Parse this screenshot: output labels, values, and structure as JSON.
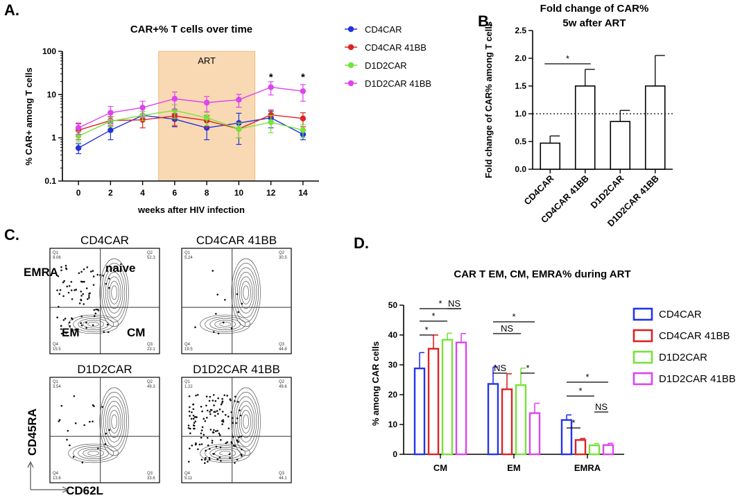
{
  "panels": {
    "a": "A.",
    "b": "B.",
    "c": "C.",
    "d": "D."
  },
  "chart_data": [
    {
      "type": "line",
      "title": "CAR+% T cells over time",
      "xlabel": "weeks after HIV infection",
      "ylabel": "% CAR+ among T cells",
      "yscale": "log",
      "ylim": [
        0.1,
        100
      ],
      "xlim": [
        -1,
        15
      ],
      "x": [
        0,
        2,
        4,
        6,
        8,
        10,
        12,
        14
      ],
      "x_ticks": [
        "0",
        "2",
        "4",
        "6",
        "8",
        "10",
        "12",
        "14"
      ],
      "y_ticks": [
        "0.1",
        "1",
        "10",
        "100"
      ],
      "shaded_region": {
        "label": "ART",
        "x_start": 5,
        "x_end": 11,
        "color": "#f9d9b4"
      },
      "annotations": [
        {
          "x": 12,
          "text": "*"
        },
        {
          "x": 14,
          "text": "*"
        }
      ],
      "legend_position": "right",
      "series": [
        {
          "name": "CD4CAR",
          "color": "#2233dd",
          "values": [
            0.58,
            1.5,
            3.3,
            2.7,
            1.7,
            2.2,
            2.9,
            1.2
          ],
          "err": [
            0.15,
            0.6,
            0.8,
            0.9,
            0.8,
            1.5,
            1.2,
            0.3
          ]
        },
        {
          "name": "CD4CAR 41BB",
          "color": "#dd2222",
          "values": [
            1.5,
            2.5,
            2.6,
            3.2,
            2.5,
            1.6,
            3.4,
            2.8
          ],
          "err": [
            0.6,
            0.6,
            0.9,
            1.3,
            0.8,
            0.6,
            1.0,
            1.0
          ]
        },
        {
          "name": "D1D2CAR",
          "color": "#77e23b",
          "values": [
            1.1,
            2.4,
            3.3,
            4.3,
            2.9,
            1.6,
            2.3,
            1.5
          ],
          "err": [
            0.3,
            0.6,
            0.8,
            1.5,
            1.0,
            0.6,
            1.0,
            0.5
          ]
        },
        {
          "name": "D1D2CAR 41BB",
          "color": "#dd44ee",
          "values": [
            1.7,
            3.8,
            5.0,
            8.0,
            6.5,
            7.6,
            14.8,
            12.0
          ],
          "err": [
            0.5,
            1.5,
            2.0,
            3.5,
            2.5,
            2.5,
            5.0,
            5.0
          ]
        }
      ]
    },
    {
      "type": "bar",
      "title": "Fold change of CAR%",
      "subtitle": "5w after ART",
      "ylabel": "Fold change of CAR% among T cells",
      "ylim": [
        0,
        2.5
      ],
      "y_ticks": [
        "0.0",
        "0.5",
        "1.0",
        "1.5",
        "2.0",
        "2.5"
      ],
      "categories": [
        "CD4CAR",
        "CD4CAR 41BB",
        "D1D2CAR",
        "D1D2CAR 41BB"
      ],
      "values": [
        0.47,
        1.5,
        0.86,
        1.5
      ],
      "err": [
        0.13,
        0.3,
        0.2,
        0.55
      ],
      "reference_line": 1.0,
      "significance": [
        {
          "from": 0,
          "to": 1,
          "text": "*"
        }
      ]
    },
    {
      "type": "scatter",
      "subtype": "flow-cytometry-contour-grid",
      "xlabel": "CD62L",
      "ylabel": "CD45RA",
      "gate_labels": {
        "q1": "EMRA",
        "q2": "naive",
        "q3": "CM",
        "q4": "EM"
      },
      "plots": [
        {
          "title": "CD4CAR",
          "q1": "Q1\n9.06",
          "q2": "Q2\n52.3",
          "q3": "Q3\n23.1",
          "q4": "Q4\n15.5"
        },
        {
          "title": "CD4CAR 41BB",
          "q1": "Q1\n5.24",
          "q2": "Q2\n30.5",
          "q3": "Q3\n44.8",
          "q4": "Q4\n19.5"
        },
        {
          "title": "D1D2CAR",
          "q1": "Q1\n3.54",
          "q2": "Q2\n49.3",
          "q3": "Q3\n33.6",
          "q4": "Q4\n13.6"
        },
        {
          "title": "D1D2CAR 41BB",
          "q1": "Q1\n1.22",
          "q2": "Q2\n49.6",
          "q3": "Q3\n44.1",
          "q4": "Q4\n5.11"
        }
      ]
    },
    {
      "type": "bar",
      "title": "CAR T EM, CM, EMRA% during ART",
      "ylabel": "% among CAR cells",
      "ylim": [
        0,
        50
      ],
      "y_ticks": [
        "0",
        "10",
        "20",
        "30",
        "40",
        "50"
      ],
      "categories": [
        "CM",
        "EM",
        "EMRA"
      ],
      "legend_position": "right",
      "series": [
        {
          "name": "CD4CAR",
          "color": "#2233ee",
          "values": [
            28.8,
            23.6,
            11.5
          ],
          "err": [
            5.3,
            5.7,
            1.7
          ]
        },
        {
          "name": "CD4CAR 41BB",
          "color": "#dd2222",
          "values": [
            35.4,
            21.8,
            4.8
          ],
          "err": [
            4.6,
            5.2,
            0.5
          ]
        },
        {
          "name": "D1D2CAR",
          "color": "#77e23b",
          "values": [
            38.4,
            23.2,
            3.0
          ],
          "err": [
            2.2,
            5.7,
            0.6
          ]
        },
        {
          "name": "D1D2CAR 41BB",
          "color": "#dd44ee",
          "values": [
            37.5,
            13.8,
            3.1
          ],
          "err": [
            3.0,
            3.3,
            0.6
          ]
        }
      ],
      "significance": [
        {
          "group": 0,
          "from": 0,
          "to": 1,
          "text": "*",
          "level": 3
        },
        {
          "group": 0,
          "from": 0,
          "to": 2,
          "text": "*",
          "level": 2
        },
        {
          "group": 0,
          "from": 0,
          "to": 3,
          "text": "*",
          "level": 1
        },
        {
          "group": 0,
          "from": 2,
          "to": 3,
          "text": "NS",
          "level": 1
        },
        {
          "group": 1,
          "from": 0,
          "to": 3,
          "text": "*",
          "level": 1
        },
        {
          "group": 1,
          "from": 0,
          "to": 2,
          "text": "NS",
          "level": 2
        },
        {
          "group": 1,
          "from": 0,
          "to": 1,
          "text": "NS",
          "level": 4
        },
        {
          "group": 1,
          "from": 2,
          "to": 3,
          "text": "*",
          "level": 5
        },
        {
          "group": 2,
          "from": 0,
          "to": 3,
          "text": "*",
          "level": 1
        },
        {
          "group": 2,
          "from": 0,
          "to": 2,
          "text": "*",
          "level": 2
        },
        {
          "group": 2,
          "from": 0,
          "to": 1,
          "text": "*",
          "level": 4
        },
        {
          "group": 2,
          "from": 2,
          "to": 3,
          "text": "NS",
          "level": 3
        }
      ]
    }
  ]
}
